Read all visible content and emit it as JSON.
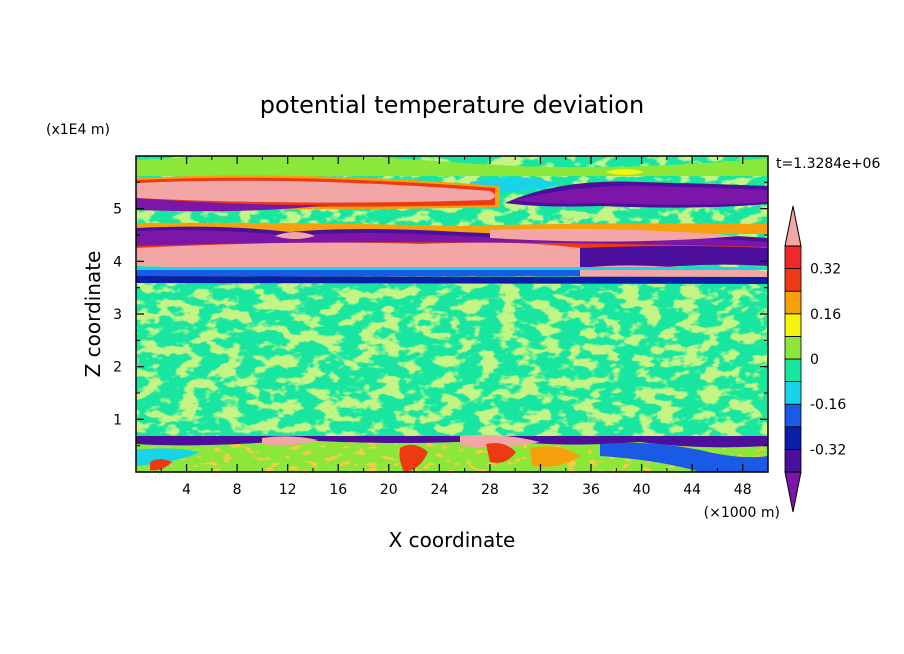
{
  "chart_data": {
    "type": "heatmap",
    "title": "potential temperature deviation",
    "xlabel": "X coordinate",
    "ylabel": "Z coordinate",
    "x_unit_label": "(×1000 m)",
    "y_unit_label": "(x1E4 m)",
    "time_label": "t=1.3284e+06",
    "xlim": [
      0,
      50
    ],
    "ylim": [
      0,
      6
    ],
    "x_ticks": [
      "4",
      "8",
      "12",
      "16",
      "20",
      "24",
      "28",
      "32",
      "36",
      "40",
      "44",
      "48"
    ],
    "y_ticks": [
      "1",
      "2",
      "3",
      "4",
      "5"
    ],
    "colorbar": {
      "ticks": [
        "0.32",
        "0.16",
        "0",
        "-0.16",
        "-0.32"
      ],
      "tick_values": [
        0.32,
        0.16,
        0,
        -0.16,
        -0.32
      ],
      "levels": [
        -0.4,
        -0.32,
        -0.24,
        -0.16,
        -0.08,
        0,
        0.08,
        0.16,
        0.24,
        0.32,
        0.4
      ],
      "colors": [
        "#7b16a8",
        "#4b0f9c",
        "#0a1fa8",
        "#1a5be6",
        "#18d4e8",
        "#18e6a0",
        "#8be83a",
        "#f4f40e",
        "#f6a00e",
        "#ee3a12",
        "#f02828",
        "#f2a6a6"
      ],
      "extends": "both"
    },
    "bands": [
      {
        "z": [
          5.3,
          5.6
        ],
        "value": 0.42
      },
      {
        "z": [
          5.05,
          5.2
        ],
        "value": -0.42
      },
      {
        "z": [
          4.15,
          4.4
        ],
        "value": 0.42
      },
      {
        "z": [
          4.4,
          4.65
        ],
        "value": -0.42
      },
      {
        "z": [
          3.7,
          3.85
        ],
        "value": -0.34
      },
      {
        "z": [
          0,
          0.7
        ],
        "value": 0.0
      }
    ]
  }
}
